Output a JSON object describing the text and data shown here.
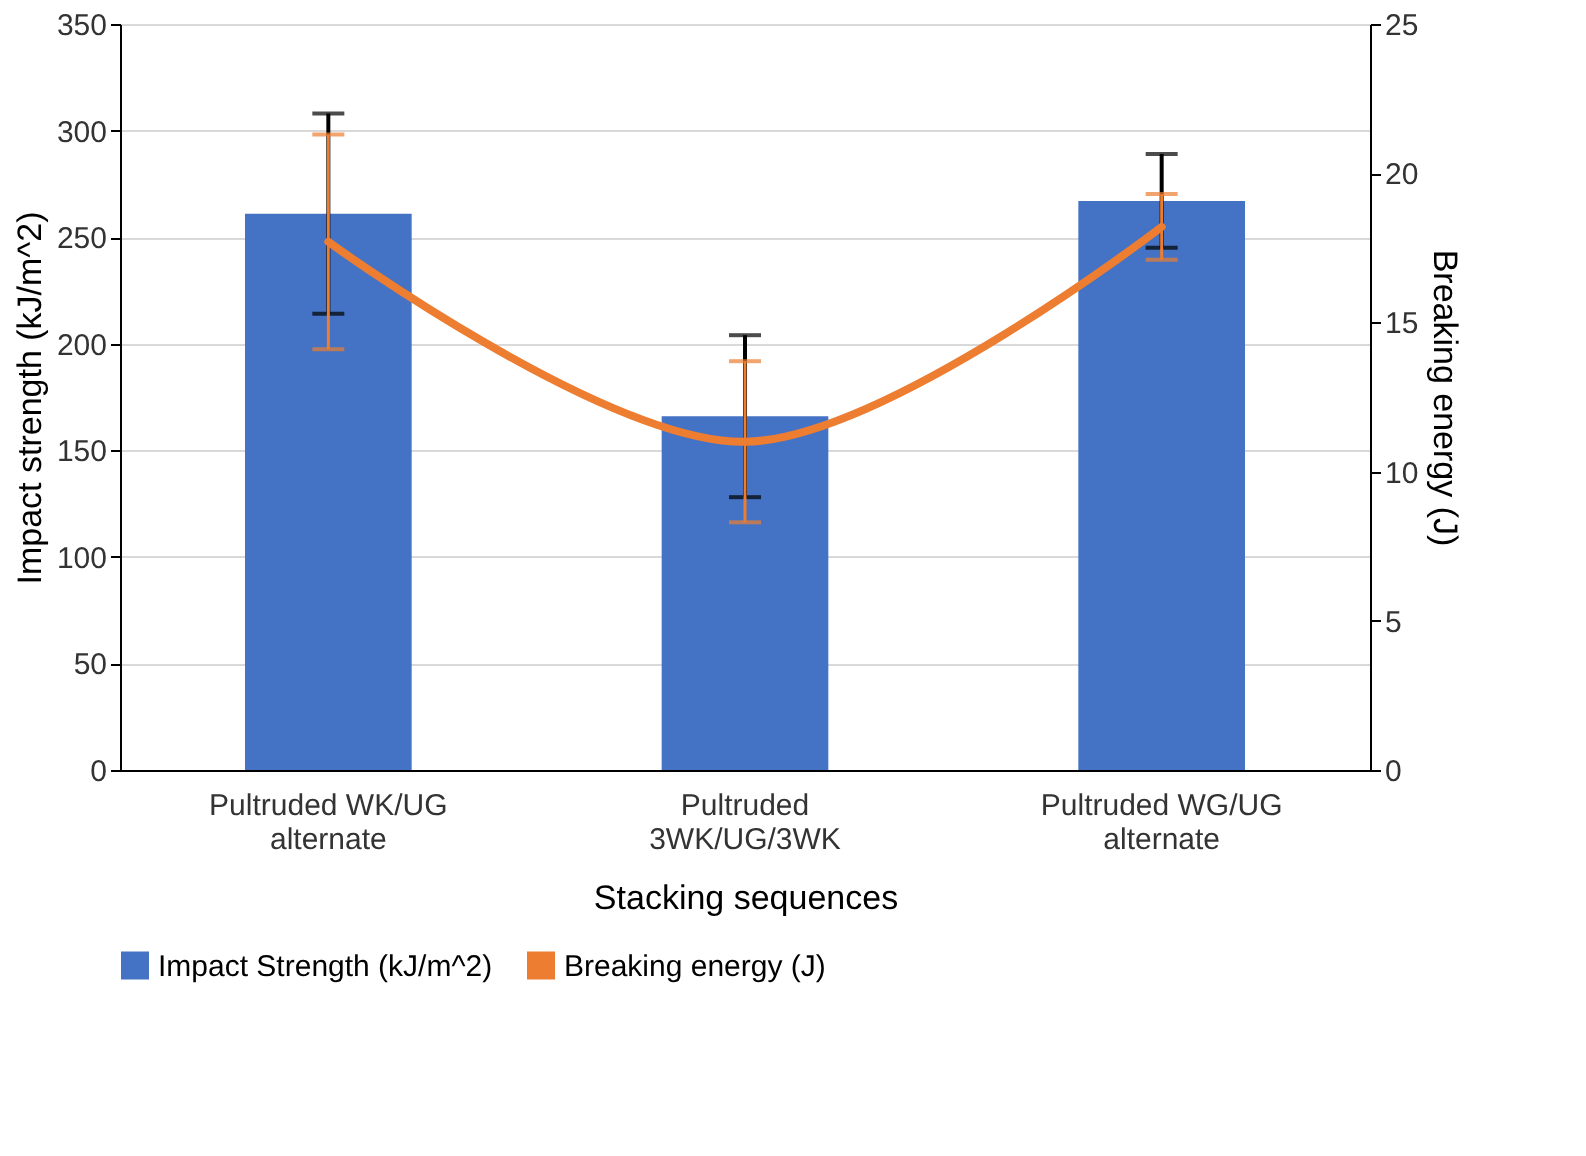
{
  "chart_data": {
    "type": "bar",
    "xlabel": "Stacking sequences",
    "ylabel": "Impact strength (kJ/m^2)",
    "y2label": "Breaking energy (J)",
    "categories": [
      "Pultruded WK/UG alternate",
      "Pultruded 3WK/UG/3WK",
      "Pultruded WG/UG alternate"
    ],
    "series": [
      {
        "name": "Impact Strength (kJ/m^2)",
        "color": "#4472c4",
        "values": [
          261,
          166,
          267
        ],
        "errors": [
          47,
          38,
          22
        ]
      },
      {
        "name": "Breaking energy (J)",
        "type": "line",
        "axis": "y2",
        "color": "#ed7d31",
        "values": [
          17.7,
          11.0,
          18.2
        ],
        "errors": [
          3.6,
          2.7,
          1.1
        ]
      }
    ],
    "ylim": [
      0,
      350
    ],
    "yticks": [
      0,
      50,
      100,
      150,
      200,
      250,
      300,
      350
    ],
    "y2lim": [
      0,
      25
    ],
    "y2ticks": [
      0,
      5,
      10,
      15,
      20,
      25
    ],
    "grid": "y",
    "legend": "bottom",
    "line_style": "solid",
    "marker": "none"
  }
}
